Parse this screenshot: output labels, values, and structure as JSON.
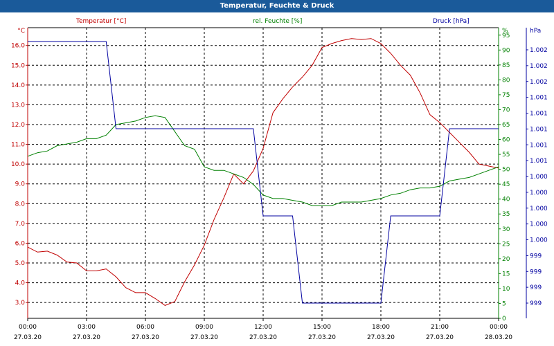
{
  "window": {
    "title": "Temperatur, Feuchte & Druck"
  },
  "chart_data": {
    "type": "line",
    "title": "Temperatur, Feuchte & Druck",
    "grid": true,
    "x": [
      "27.03.20 00:00",
      "27.03.20 00:30",
      "27.03.20 01:00",
      "27.03.20 01:30",
      "27.03.20 02:00",
      "27.03.20 02:30",
      "27.03.20 03:00",
      "27.03.20 03:30",
      "27.03.20 04:00",
      "27.03.20 04:30",
      "27.03.20 05:00",
      "27.03.20 05:30",
      "27.03.20 06:00",
      "27.03.20 06:30",
      "27.03.20 07:00",
      "27.03.20 07:30",
      "27.03.20 08:00",
      "27.03.20 08:30",
      "27.03.20 09:00",
      "27.03.20 09:30",
      "27.03.20 10:00",
      "27.03.20 10:30",
      "27.03.20 11:00",
      "27.03.20 11:30",
      "27.03.20 12:00",
      "27.03.20 12:30",
      "27.03.20 13:00",
      "27.03.20 13:30",
      "27.03.20 14:00",
      "27.03.20 14:30",
      "27.03.20 15:00",
      "27.03.20 15:30",
      "27.03.20 16:00",
      "27.03.20 16:30",
      "27.03.20 17:00",
      "27.03.20 17:30",
      "27.03.20 18:00",
      "27.03.20 18:30",
      "27.03.20 19:00",
      "27.03.20 19:30",
      "27.03.20 20:00",
      "27.03.20 20:30",
      "27.03.20 21:00",
      "27.03.20 21:30",
      "27.03.20 22:00",
      "27.03.20 22:30",
      "27.03.20 23:00",
      "27.03.20 23:30",
      "28.03.20 00:00"
    ],
    "x_ticks": [
      {
        "time": "00:00",
        "date": "27.03.20"
      },
      {
        "time": "03:00",
        "date": "27.03.20"
      },
      {
        "time": "06:00",
        "date": "27.03.20"
      },
      {
        "time": "09:00",
        "date": "27.03.20"
      },
      {
        "time": "12:00",
        "date": "27.03.20"
      },
      {
        "time": "15:00",
        "date": "27.03.20"
      },
      {
        "time": "18:00",
        "date": "27.03.20"
      },
      {
        "time": "21:00",
        "date": "27.03.20"
      },
      {
        "time": "00:00",
        "date": "28.03.20"
      }
    ],
    "axes": {
      "temperature": {
        "unit": "°C",
        "ylim": [
          2.2,
          16.9
        ],
        "color": "#c00000",
        "ticks": [
          "3.0",
          "4.0",
          "5.0",
          "6.0",
          "7.0",
          "8.0",
          "9.0",
          "10.0",
          "11.0",
          "12.0",
          "13.0",
          "14.0",
          "15.0",
          "16.0"
        ]
      },
      "humidity": {
        "unit": "%",
        "ylim": [
          0,
          82.5
        ],
        "color": "#008000",
        "ticks": [
          "0",
          "5",
          "10",
          "15",
          "20",
          "25",
          "30",
          "35",
          "40",
          "45",
          "50",
          "55",
          "60",
          "65",
          "70",
          "75",
          "80",
          "85",
          "90",
          "95",
          "%"
        ]
      },
      "pressure": {
        "unit": "hPa",
        "color": "#0000a0",
        "ticks": [
          "999",
          "999",
          "999",
          "999",
          "1.000",
          "1.000",
          "1.000",
          "1.000",
          "1.000",
          "1.001",
          "1.001",
          "1.001",
          "1.001",
          "1.001",
          "1.002",
          "1.002",
          "1.002"
        ]
      }
    },
    "series": [
      {
        "name": "Temperatur [°C]",
        "axis": "temperature",
        "color": "#c00000",
        "values": [
          5.8,
          5.55,
          5.6,
          5.4,
          5.05,
          5.0,
          4.6,
          4.6,
          4.7,
          4.3,
          3.75,
          3.5,
          3.5,
          3.2,
          2.85,
          3.05,
          4.05,
          4.9,
          5.9,
          7.2,
          8.3,
          9.5,
          9.0,
          9.65,
          10.8,
          12.6,
          13.3,
          13.9,
          14.4,
          15.0,
          15.9,
          16.1,
          16.25,
          16.35,
          16.3,
          16.35,
          16.1,
          15.6,
          15.0,
          14.5,
          13.6,
          12.5,
          12.1,
          11.6,
          11.1,
          10.6,
          10.0,
          9.9,
          9.8
        ]
      },
      {
        "name": "rel. Feuchte [%]",
        "axis": "humidity",
        "color": "#008000",
        "values": [
          46,
          47,
          47.5,
          49,
          49.5,
          50,
          51,
          51,
          52,
          55,
          55.5,
          56,
          57,
          57.5,
          57,
          53,
          49,
          48,
          43,
          42,
          42,
          41,
          40,
          38,
          35,
          34,
          34,
          33.5,
          33,
          32,
          32,
          32,
          33,
          33,
          33,
          33.5,
          34,
          35,
          35.5,
          36.5,
          37,
          37,
          37.5,
          39,
          39.5,
          40,
          41,
          42,
          43
        ]
      },
      {
        "name": "Druck [hPa]",
        "axis": "pressure",
        "color": "#0000a0",
        "values": [
          1.002,
          1.002,
          1.002,
          1.002,
          1.002,
          1.002,
          1.002,
          1.002,
          1.002,
          1.001,
          1.001,
          1.001,
          1.001,
          1.001,
          1.001,
          1.001,
          1.001,
          1.001,
          1.001,
          1.001,
          1.001,
          1.001,
          1.001,
          1.001,
          1.0,
          1.0,
          1.0,
          1.0,
          999,
          999,
          999,
          999,
          999,
          999,
          999,
          999,
          999,
          1.0,
          1.0,
          1.0,
          1.0,
          1.0,
          1.0,
          1.001,
          1.001,
          1.001,
          1.001,
          1.001,
          1.001
        ]
      }
    ],
    "legend": [
      {
        "label": "Temperatur [°C]",
        "color": "#c00000"
      },
      {
        "label": "rel. Feuchte [%]",
        "color": "#008000"
      },
      {
        "label": "Druck [hPa]",
        "color": "#0000a0"
      }
    ]
  }
}
